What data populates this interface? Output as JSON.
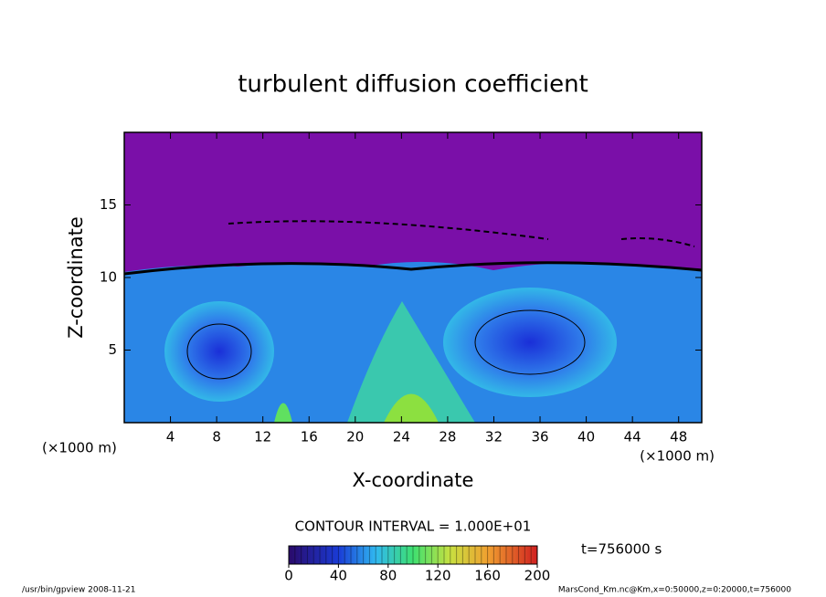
{
  "chart_data": {
    "type": "contour",
    "title": "turbulent diffusion coefficient",
    "xlabel": "X-coordinate",
    "ylabel": "Z-coordinate",
    "x_unit": "(×1000 m)",
    "y_unit": "(×1000 m)",
    "xlim": [
      0,
      50
    ],
    "xticks": [
      4,
      8,
      12,
      16,
      20,
      24,
      28,
      32,
      36,
      40,
      44,
      48
    ],
    "ylim": [
      0,
      20
    ],
    "yticks": [
      5,
      10,
      15
    ],
    "contour_interval": "CONTOUR INTERVAL = 1.000E+01",
    "time_label": "t=756000 s",
    "clim": [
      0,
      200
    ],
    "cticks": [
      0,
      40,
      80,
      120,
      160,
      200
    ],
    "footer_left": "/usr/bin/gpview  2008-11-21",
    "footer_right": "MarsCond_Km.nc@Km,x=0:50000,z=0:20000,t=756000"
  }
}
